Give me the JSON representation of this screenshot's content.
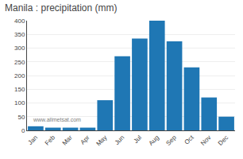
{
  "chart_data": {
    "type": "bar",
    "title": "Manila : precipitation (mm)",
    "categories": [
      "Jan",
      "Feb",
      "Mar",
      "Apr",
      "May",
      "Jun",
      "Jul",
      "Aug",
      "Sep",
      "Oct",
      "Nov",
      "Dec"
    ],
    "values": [
      15,
      10,
      10,
      10,
      110,
      270,
      335,
      400,
      325,
      230,
      120,
      50
    ],
    "ylim": [
      0,
      400
    ],
    "yticks": [
      0,
      50,
      100,
      150,
      200,
      250,
      300,
      350,
      400
    ],
    "grid": true,
    "annotations": [
      "www.allmetsat.com"
    ]
  }
}
